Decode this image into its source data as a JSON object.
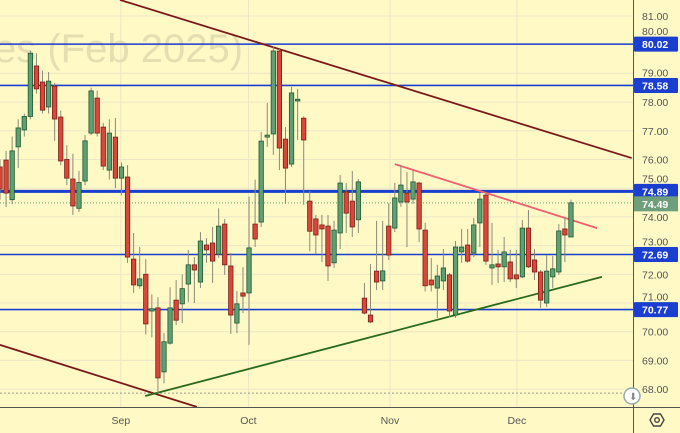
{
  "watermark": "es (Feb 2025)",
  "colors": {
    "background": "#fff9c6",
    "up_body": "#5f9f72",
    "up_border": "#1e5a32",
    "down_body": "#d8473a",
    "down_border": "#7a1e18",
    "level_line": "#1a3fd0",
    "level_badge": "#1a3fd0",
    "last_price_badge": "#6f9f7a",
    "downtrend_line": "#7a1a1a",
    "resistance_line": "#f06070",
    "support_line": "#2a6a1a"
  },
  "icons": {
    "settings": "gear-icon",
    "scroll": "scroll-to-latest-icon"
  },
  "chart_data": {
    "type": "candlestick",
    "title": "",
    "xlabel": "",
    "ylabel": "",
    "ylim": [
      67.4,
      81.55
    ],
    "grid": true,
    "y_ticks": [
      "68.00",
      "69.00",
      "70.00",
      "71.00",
      "72.00",
      "73.00",
      "74.00",
      "75.00",
      "76.00",
      "77.00",
      "78.00",
      "79.00",
      "80.00",
      "81.00"
    ],
    "x_ticks": [
      "Sep",
      "Oct",
      "Nov",
      "Dec"
    ],
    "ohlc": [
      [
        75.74,
        76.0,
        74.6,
        74.97
      ],
      [
        75.98,
        76.3,
        74.35,
        74.83
      ],
      [
        74.6,
        76.8,
        74.45,
        76.3
      ],
      [
        76.44,
        77.4,
        75.7,
        77.1
      ],
      [
        77.03,
        77.6,
        76.8,
        77.5
      ],
      [
        77.5,
        79.8,
        77.4,
        79.7
      ],
      [
        79.26,
        79.7,
        78.3,
        78.46
      ],
      [
        78.7,
        79.1,
        77.6,
        77.72
      ],
      [
        77.83,
        79.05,
        77.6,
        78.73
      ],
      [
        78.56,
        78.67,
        76.65,
        77.41
      ],
      [
        77.48,
        77.7,
        75.8,
        75.95
      ],
      [
        76.0,
        76.5,
        75.1,
        75.35
      ],
      [
        75.32,
        76.2,
        74.07,
        74.38
      ],
      [
        74.3,
        75.6,
        74.17,
        75.2
      ],
      [
        75.25,
        76.85,
        75.1,
        76.65
      ],
      [
        76.92,
        78.5,
        76.85,
        78.39
      ],
      [
        78.14,
        78.4,
        76.8,
        76.92
      ],
      [
        77.13,
        77.27,
        75.63,
        75.77
      ],
      [
        75.63,
        77.4,
        75.3,
        76.92
      ],
      [
        76.78,
        77.45,
        75.0,
        75.35
      ],
      [
        75.35,
        75.9,
        74.75,
        75.74
      ],
      [
        75.39,
        75.8,
        72.4,
        72.6
      ],
      [
        72.53,
        73.44,
        71.35,
        71.63
      ],
      [
        71.6,
        72.95,
        71.5,
        71.84
      ],
      [
        72.0,
        72.53,
        69.9,
        70.27
      ],
      [
        70.72,
        71.3,
        69.8,
        70.8
      ],
      [
        70.83,
        71.2,
        67.86,
        68.39
      ],
      [
        68.6,
        69.95,
        68.2,
        69.65
      ],
      [
        69.6,
        71.55,
        69.55,
        70.83
      ],
      [
        71.1,
        71.8,
        70.23,
        70.4
      ],
      [
        70.97,
        72.0,
        70.3,
        71.5
      ],
      [
        71.66,
        72.85,
        71.03,
        72.33
      ],
      [
        72.33,
        72.6,
        71.0,
        72.15
      ],
      [
        71.73,
        73.47,
        71.52,
        73.16
      ],
      [
        73.02,
        73.26,
        72.4,
        72.85
      ],
      [
        73.09,
        73.65,
        71.7,
        72.46
      ],
      [
        72.7,
        74.3,
        72.57,
        73.68
      ],
      [
        73.75,
        73.93,
        71.98,
        72.33
      ],
      [
        72.29,
        72.74,
        69.92,
        70.58
      ],
      [
        70.3,
        71.42,
        69.95,
        70.97
      ],
      [
        71.35,
        72.25,
        70.65,
        71.24
      ],
      [
        71.35,
        74.7,
        69.54,
        72.92
      ],
      [
        73.75,
        75.3,
        72.95,
        73.23
      ],
      [
        73.82,
        76.96,
        73.65,
        76.64
      ],
      [
        76.78,
        77.97,
        76.44,
        76.85
      ],
      [
        76.89,
        79.95,
        76.16,
        79.78
      ],
      [
        79.78,
        79.85,
        75.63,
        76.4
      ],
      [
        76.71,
        77.13,
        74.45,
        75.7
      ],
      [
        75.84,
        78.53,
        75.74,
        78.32
      ],
      [
        78.04,
        78.46,
        76.68,
        78.1
      ],
      [
        77.44,
        77.5,
        74.42,
        76.68
      ],
      [
        74.55,
        74.9,
        72.8,
        73.5
      ],
      [
        73.93,
        74.07,
        72.7,
        73.37
      ],
      [
        73.72,
        74.07,
        72.43,
        73.58
      ],
      [
        73.68,
        74.07,
        71.77,
        72.29
      ],
      [
        72.4,
        73.86,
        72.22,
        73.54
      ],
      [
        73.44,
        75.46,
        72.88,
        75.18
      ],
      [
        74.87,
        75.18,
        73.44,
        74.13
      ],
      [
        74.55,
        75.6,
        73.3,
        73.65
      ],
      [
        73.9,
        75.32,
        73.44,
        75.22
      ],
      [
        71.17,
        71.7,
        70.6,
        70.65
      ],
      [
        70.58,
        72.36,
        70.3,
        70.34
      ],
      [
        72.11,
        73.86,
        71.45,
        71.73
      ],
      [
        71.77,
        73.86,
        71.45,
        72.12
      ],
      [
        73.68,
        74.48,
        72.5,
        72.67
      ],
      [
        73.61,
        75.18,
        73.47,
        74.66
      ],
      [
        74.52,
        75.8,
        74.35,
        75.11
      ],
      [
        74.83,
        75.56,
        72.95,
        74.52
      ],
      [
        74.62,
        75.63,
        74.45,
        75.22
      ],
      [
        75.18,
        75.22,
        73.12,
        73.58
      ],
      [
        73.54,
        73.79,
        71.4,
        71.6
      ],
      [
        71.8,
        72.57,
        71.4,
        71.63
      ],
      [
        71.52,
        72.33,
        70.48,
        71.94
      ],
      [
        71.77,
        72.88,
        71.45,
        72.22
      ],
      [
        71.98,
        72.05,
        70.5,
        70.72
      ],
      [
        70.58,
        73.16,
        70.48,
        72.95
      ],
      [
        72.78,
        73.58,
        72.4,
        72.95
      ],
      [
        73.02,
        73.58,
        72.4,
        72.46
      ],
      [
        72.74,
        73.96,
        72.6,
        73.72
      ],
      [
        73.79,
        74.83,
        72.95,
        74.62
      ],
      [
        74.76,
        74.83,
        72.33,
        72.46
      ],
      [
        72.22,
        73.79,
        71.63,
        72.33
      ],
      [
        72.36,
        72.85,
        71.7,
        72.26
      ],
      [
        72.26,
        73.3,
        71.73,
        72.78
      ],
      [
        72.43,
        72.85,
        71.73,
        71.84
      ],
      [
        71.98,
        72.85,
        71.52,
        71.84
      ],
      [
        71.91,
        73.89,
        71.87,
        73.61
      ],
      [
        73.61,
        74.24,
        72.22,
        72.26
      ],
      [
        72.5,
        72.88,
        71.8,
        72.08
      ],
      [
        72.08,
        72.15,
        70.83,
        71.1
      ],
      [
        71.0,
        72.67,
        70.86,
        72.11
      ],
      [
        71.91,
        72.64,
        71.52,
        72.19
      ],
      [
        72.08,
        73.75,
        71.98,
        73.51
      ],
      [
        73.58,
        74.0,
        72.43,
        73.37
      ],
      [
        73.3,
        74.6,
        73.3,
        74.49
      ]
    ],
    "levels": [
      {
        "label": "80.02",
        "value": 80.02
      },
      {
        "label": "78.58",
        "value": 78.58
      },
      {
        "label": "74.89",
        "value": 74.89
      },
      {
        "label": "72.69",
        "value": 72.69
      },
      {
        "label": "70.77",
        "value": 70.77
      }
    ],
    "last_price": {
      "label": "74.49",
      "value": 74.49
    },
    "low_marker": 67.86,
    "trendlines": [
      {
        "kind": "downtrend-upper",
        "from": 81.56,
        "to": 76.05
      },
      {
        "kind": "downtrend-lower",
        "from": 69.54,
        "to": 67.38
      },
      {
        "kind": "support",
        "from": 67.76,
        "to": 71.91
      },
      {
        "kind": "resistance",
        "from": 75.84,
        "to": 73.61
      }
    ]
  }
}
